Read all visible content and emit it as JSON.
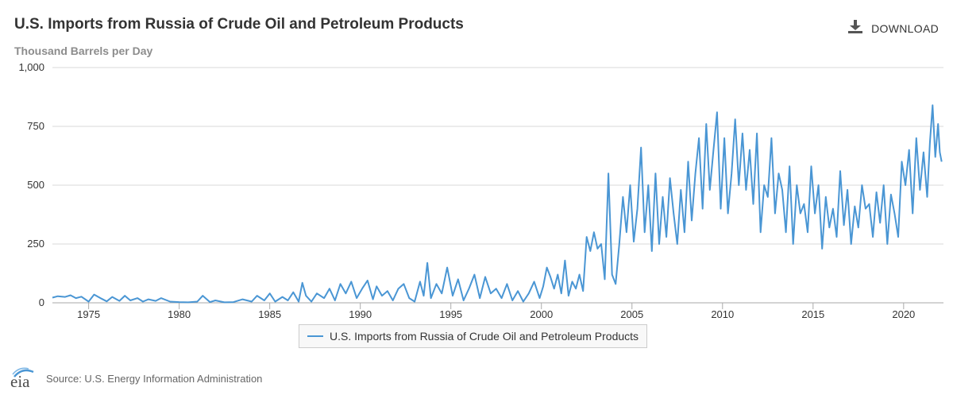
{
  "header": {
    "title": "U.S. Imports from Russia of Crude Oil and Petroleum Products",
    "subtitle": "Thousand Barrels per Day",
    "download_label": "DOWNLOAD"
  },
  "footer": {
    "logo_text": "eia",
    "source": "Source: U.S. Energy Information Administration"
  },
  "colors": {
    "series": "#4a96d4",
    "grid": "#d8d8d8",
    "axis": "#aaaaaa",
    "accent": "#4d4d4d"
  },
  "chart_data": {
    "type": "line",
    "title": "U.S. Imports from Russia of Crude Oil and Petroleum Products",
    "ylabel": "Thousand Barrels per Day",
    "xlabel": "",
    "xlim": [
      1973,
      2022.2
    ],
    "ylim": [
      0,
      1000
    ],
    "x_ticks": [
      1975,
      1980,
      1985,
      1990,
      1995,
      2000,
      2005,
      2010,
      2015,
      2020
    ],
    "y_ticks": [
      0,
      250,
      500,
      750,
      1000
    ],
    "y_tick_labels": [
      "0",
      "250",
      "500",
      "750",
      "1,000"
    ],
    "grid": true,
    "legend": "bottom-center",
    "series": [
      {
        "name": "U.S. Imports from Russia of Crude Oil and Petroleum Products",
        "x": [
          1973.0,
          1973.3,
          1973.7,
          1974.0,
          1974.3,
          1974.6,
          1975.0,
          1975.3,
          1975.7,
          1976.0,
          1976.3,
          1976.7,
          1977.0,
          1977.3,
          1977.7,
          1978.0,
          1978.3,
          1978.7,
          1979.0,
          1979.5,
          1980.0,
          1980.5,
          1981.0,
          1981.3,
          1981.7,
          1982.0,
          1982.5,
          1983.0,
          1983.5,
          1984.0,
          1984.3,
          1984.7,
          1985.0,
          1985.3,
          1985.7,
          1986.0,
          1986.3,
          1986.6,
          1986.8,
          1987.0,
          1987.3,
          1987.6,
          1988.0,
          1988.3,
          1988.6,
          1988.9,
          1989.2,
          1989.5,
          1989.8,
          1990.1,
          1990.4,
          1990.7,
          1990.9,
          1991.2,
          1991.5,
          1991.8,
          1992.1,
          1992.4,
          1992.7,
          1993.0,
          1993.3,
          1993.5,
          1993.7,
          1993.9,
          1994.2,
          1994.5,
          1994.8,
          1995.1,
          1995.4,
          1995.7,
          1996.0,
          1996.3,
          1996.6,
          1996.9,
          1997.2,
          1997.5,
          1997.8,
          1998.1,
          1998.4,
          1998.7,
          1999.0,
          1999.3,
          1999.6,
          1999.9,
          2000.1,
          2000.3,
          2000.5,
          2000.7,
          2000.9,
          2001.1,
          2001.3,
          2001.5,
          2001.7,
          2001.9,
          2002.1,
          2002.3,
          2002.5,
          2002.7,
          2002.9,
          2003.1,
          2003.3,
          2003.5,
          2003.7,
          2003.9,
          2004.1,
          2004.3,
          2004.5,
          2004.7,
          2004.9,
          2005.1,
          2005.3,
          2005.5,
          2005.7,
          2005.9,
          2006.1,
          2006.3,
          2006.5,
          2006.7,
          2006.9,
          2007.1,
          2007.3,
          2007.5,
          2007.7,
          2007.9,
          2008.1,
          2008.3,
          2008.5,
          2008.7,
          2008.9,
          2009.1,
          2009.3,
          2009.5,
          2009.7,
          2009.9,
          2010.1,
          2010.3,
          2010.5,
          2010.7,
          2010.9,
          2011.1,
          2011.3,
          2011.5,
          2011.7,
          2011.9,
          2012.1,
          2012.3,
          2012.5,
          2012.7,
          2012.9,
          2013.1,
          2013.3,
          2013.5,
          2013.7,
          2013.9,
          2014.1,
          2014.3,
          2014.5,
          2014.7,
          2014.9,
          2015.1,
          2015.3,
          2015.5,
          2015.7,
          2015.9,
          2016.1,
          2016.3,
          2016.5,
          2016.7,
          2016.9,
          2017.1,
          2017.3,
          2017.5,
          2017.7,
          2017.9,
          2018.1,
          2018.3,
          2018.5,
          2018.7,
          2018.9,
          2019.1,
          2019.3,
          2019.5,
          2019.7,
          2019.9,
          2020.1,
          2020.3,
          2020.5,
          2020.7,
          2020.9,
          2021.1,
          2021.3,
          2021.45,
          2021.6,
          2021.75,
          2021.9,
          2022.0,
          2022.1
        ],
        "values": [
          22,
          28,
          25,
          32,
          20,
          26,
          5,
          35,
          18,
          6,
          25,
          8,
          30,
          10,
          20,
          5,
          15,
          8,
          20,
          5,
          3,
          2,
          5,
          30,
          3,
          10,
          2,
          3,
          15,
          5,
          30,
          10,
          40,
          5,
          25,
          10,
          45,
          5,
          85,
          30,
          5,
          40,
          20,
          60,
          10,
          80,
          40,
          90,
          20,
          60,
          95,
          15,
          70,
          30,
          50,
          10,
          60,
          80,
          20,
          5,
          90,
          30,
          170,
          20,
          80,
          40,
          150,
          30,
          100,
          10,
          60,
          120,
          20,
          110,
          40,
          60,
          20,
          80,
          10,
          50,
          5,
          40,
          90,
          20,
          70,
          150,
          110,
          60,
          120,
          40,
          180,
          30,
          90,
          60,
          120,
          50,
          280,
          220,
          300,
          230,
          250,
          100,
          550,
          120,
          80,
          250,
          450,
          300,
          500,
          260,
          400,
          660,
          300,
          500,
          220,
          550,
          250,
          450,
          280,
          530,
          380,
          250,
          480,
          300,
          600,
          350,
          550,
          700,
          400,
          760,
          480,
          650,
          810,
          400,
          700,
          380,
          550,
          780,
          500,
          720,
          480,
          650,
          420,
          720,
          300,
          500,
          450,
          700,
          380,
          550,
          480,
          300,
          580,
          250,
          500,
          380,
          420,
          300,
          580,
          380,
          500,
          230,
          450,
          320,
          400,
          280,
          560,
          330,
          480,
          250,
          410,
          320,
          500,
          400,
          420,
          280,
          470,
          340,
          500,
          250,
          460,
          380,
          280,
          600,
          500,
          650,
          380,
          700,
          480,
          640,
          450,
          680,
          840,
          620,
          760,
          640,
          600
        ]
      }
    ]
  }
}
